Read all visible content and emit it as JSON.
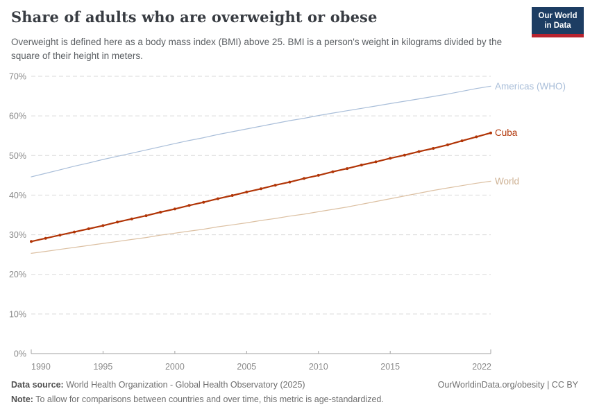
{
  "header": {
    "title": "Share of adults who are overweight or obese",
    "subtitle": "Overweight is defined here as a body mass index (BMI) above 25. BMI is a person's weight in kilograms divided by the square of their height in meters.",
    "logo": {
      "line1": "Our World",
      "line2": "in Data"
    }
  },
  "footer": {
    "source_label": "Data source:",
    "source_text": " World Health Organization - Global Health Observatory (2025)",
    "rights": "OurWorldinData.org/obesity | CC BY",
    "note_label": "Note:",
    "note_text": " To allow for comparisons between countries and over time, this metric is age-standardized."
  },
  "chart_data": {
    "type": "line",
    "title": "Share of adults who are overweight or obese",
    "xlabel": "",
    "ylabel": "",
    "xlim": [
      1990,
      2022
    ],
    "ylim": [
      0,
      70
    ],
    "xticks": [
      1990,
      1995,
      2000,
      2005,
      2010,
      2015,
      2022
    ],
    "yticks": [
      0,
      10,
      20,
      30,
      40,
      50,
      60,
      70
    ],
    "ytick_suffix": "%",
    "grid": "horizontal-dashed",
    "legend_position": "right-edge-labels",
    "x": [
      1990,
      1991,
      1992,
      1993,
      1994,
      1995,
      1996,
      1997,
      1998,
      1999,
      2000,
      2001,
      2002,
      2003,
      2004,
      2005,
      2006,
      2007,
      2008,
      2009,
      2010,
      2011,
      2012,
      2013,
      2014,
      2015,
      2016,
      2017,
      2018,
      2019,
      2020,
      2021,
      2022
    ],
    "series": [
      {
        "name": "Americas (WHO)",
        "color": "#a9bed9",
        "label_color": "#a9bed9",
        "width": 1.2,
        "markers": false,
        "values": [
          44.6,
          45.5,
          46.4,
          47.3,
          48.1,
          49.0,
          49.8,
          50.6,
          51.4,
          52.2,
          53.0,
          53.8,
          54.5,
          55.3,
          56.0,
          56.7,
          57.4,
          58.1,
          58.8,
          59.4,
          60.1,
          60.7,
          61.3,
          61.9,
          62.5,
          63.1,
          63.7,
          64.3,
          64.9,
          65.5,
          66.2,
          66.9,
          67.5
        ]
      },
      {
        "name": "World",
        "color": "#dcc0a2",
        "label_color": "#cdb092",
        "width": 1.2,
        "markers": false,
        "values": [
          25.3,
          25.8,
          26.3,
          26.8,
          27.3,
          27.8,
          28.3,
          28.8,
          29.3,
          29.9,
          30.4,
          30.9,
          31.4,
          32.0,
          32.5,
          33.0,
          33.6,
          34.1,
          34.7,
          35.2,
          35.8,
          36.4,
          37.0,
          37.7,
          38.4,
          39.1,
          39.8,
          40.5,
          41.2,
          41.8,
          42.4,
          43.0,
          43.5
        ]
      },
      {
        "name": "Cuba",
        "color": "#b13507",
        "label_color": "#b13507",
        "width": 2.2,
        "markers": true,
        "values": [
          28.3,
          29.1,
          29.9,
          30.7,
          31.5,
          32.3,
          33.2,
          34.0,
          34.8,
          35.7,
          36.5,
          37.4,
          38.2,
          39.1,
          39.9,
          40.8,
          41.6,
          42.5,
          43.3,
          44.2,
          45.0,
          45.9,
          46.7,
          47.6,
          48.4,
          49.3,
          50.1,
          51.0,
          51.8,
          52.7,
          53.7,
          54.7,
          55.7
        ]
      }
    ]
  },
  "colors": {
    "grid": "#dadada",
    "axis": "#a0a0a0",
    "tick_label": "#8a8a8a",
    "title": "#383c42",
    "subtitle": "#5b5f63",
    "footer": "#6e6e6e",
    "logo_bg": "#1d3d63",
    "logo_bar": "#b8232f"
  }
}
